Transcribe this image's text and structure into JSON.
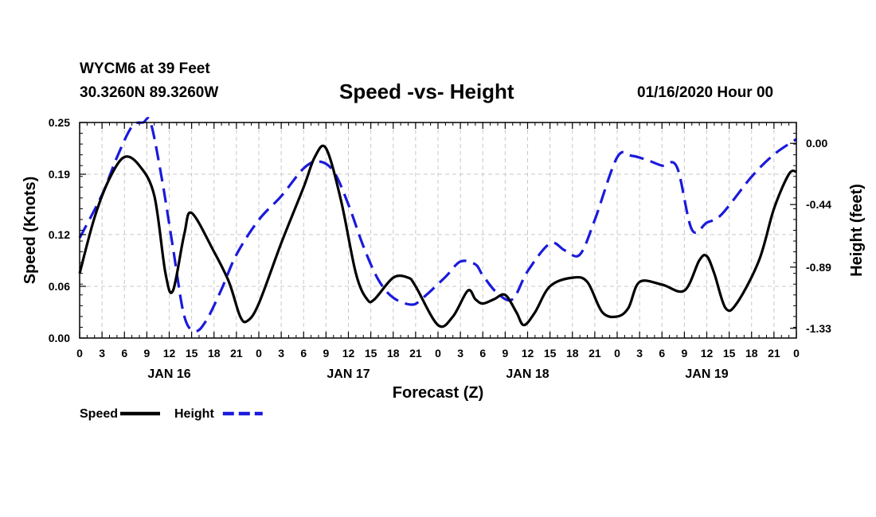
{
  "header": {
    "station_line": "WYCM6 at 39 Feet",
    "coords_line": "30.3260N 89.3260W",
    "title": "Speed -vs- Height",
    "run_time": "01/16/2020 Hour 00"
  },
  "chart_data": {
    "type": "line",
    "title": "Speed -vs- Height",
    "xlabel": "Forecast (Z)",
    "ylabel_left": "Speed (Knots)",
    "ylabel_right": "Height (feet)",
    "x_range_hours": [
      0,
      96
    ],
    "x_tick_step_hours": 3,
    "x_tick_labels": [
      "0",
      "3",
      "6",
      "9",
      "12",
      "15",
      "18",
      "21",
      "0",
      "3",
      "6",
      "9",
      "12",
      "15",
      "18",
      "21",
      "0",
      "3",
      "6",
      "9",
      "12",
      "15",
      "18",
      "21",
      "0",
      "3",
      "6",
      "9",
      "12",
      "15",
      "18",
      "21",
      "0"
    ],
    "day_labels": [
      {
        "label": "JAN 16",
        "hour": 12
      },
      {
        "label": "JAN 17",
        "hour": 36
      },
      {
        "label": "JAN 18",
        "hour": 60
      },
      {
        "label": "JAN 19",
        "hour": 84
      }
    ],
    "left_axis": {
      "min": 0,
      "max": 0.25,
      "ticks": [
        0,
        0.06,
        0.12,
        0.19,
        0.25
      ],
      "tick_labels": [
        "0.00",
        "0.06",
        "0.12",
        "0.19",
        "0.25"
      ]
    },
    "right_axis": {
      "min": -1.4,
      "max": 0.15,
      "ticks": [
        0,
        -0.44,
        -0.89,
        -1.33
      ],
      "tick_labels": [
        "0.00",
        "-0.44",
        "-0.89",
        "-1.33"
      ]
    },
    "grid": true,
    "series": [
      {
        "name": "Speed",
        "axis": "left",
        "color": "#000000",
        "dash": false,
        "x": [
          0,
          2,
          4,
          6,
          8,
          10,
          11.5,
          12.5,
          14,
          15,
          18,
          20,
          21.5,
          22.5,
          24,
          27,
          30,
          31.5,
          33,
          35,
          37,
          38.5,
          39.5,
          42,
          44,
          45,
          48,
          50,
          52,
          53,
          54,
          55.5,
          57,
          58.5,
          59.5,
          61,
          63,
          66,
          68,
          70,
          72,
          73.5,
          75,
          78,
          81,
          83,
          84,
          85,
          86.5,
          88,
          91,
          93,
          95,
          96
        ],
        "y": [
          0.075,
          0.14,
          0.185,
          0.21,
          0.2,
          0.165,
          0.075,
          0.055,
          0.12,
          0.145,
          0.1,
          0.065,
          0.025,
          0.02,
          0.04,
          0.11,
          0.175,
          0.21,
          0.22,
          0.16,
          0.075,
          0.045,
          0.045,
          0.07,
          0.07,
          0.06,
          0.015,
          0.025,
          0.055,
          0.045,
          0.04,
          0.045,
          0.05,
          0.03,
          0.015,
          0.03,
          0.06,
          0.07,
          0.065,
          0.03,
          0.025,
          0.035,
          0.065,
          0.062,
          0.055,
          0.09,
          0.095,
          0.075,
          0.035,
          0.04,
          0.09,
          0.15,
          0.19,
          0.193
        ]
      },
      {
        "name": "Height",
        "axis": "right",
        "color": "#1a1adb",
        "dash": true,
        "x": [
          0,
          3,
          5,
          7,
          8.5,
          9.5,
          11,
          12.5,
          14,
          15.5,
          17,
          19,
          21,
          24,
          27,
          30,
          32,
          34,
          36,
          38,
          40,
          42,
          44.5,
          46,
          49,
          51,
          53,
          54,
          56,
          58,
          60,
          63,
          65,
          67,
          69,
          72,
          74,
          76,
          78,
          80,
          82,
          84,
          86,
          90,
          93,
          96
        ],
        "y": [
          -0.68,
          -0.37,
          -0.1,
          0.12,
          0.22,
          0.18,
          -0.25,
          -0.75,
          -1.24,
          -1.35,
          -1.27,
          -1.05,
          -0.8,
          -0.55,
          -0.38,
          -0.18,
          -0.13,
          -0.2,
          -0.44,
          -0.74,
          -0.98,
          -1.11,
          -1.16,
          -1.11,
          -0.96,
          -0.85,
          -0.87,
          -0.95,
          -1.08,
          -1.12,
          -0.92,
          -0.72,
          -0.77,
          -0.8,
          -0.55,
          -0.1,
          -0.09,
          -0.12,
          -0.16,
          -0.17,
          -0.62,
          -0.57,
          -0.51,
          -0.24,
          -0.08,
          0.03
        ]
      }
    ],
    "legend": {
      "placement": "bottom-left",
      "entries": [
        {
          "label": "Speed",
          "color": "#000000",
          "dash": false
        },
        {
          "label": "Height",
          "color": "#1a1adb",
          "dash": true
        }
      ]
    }
  }
}
